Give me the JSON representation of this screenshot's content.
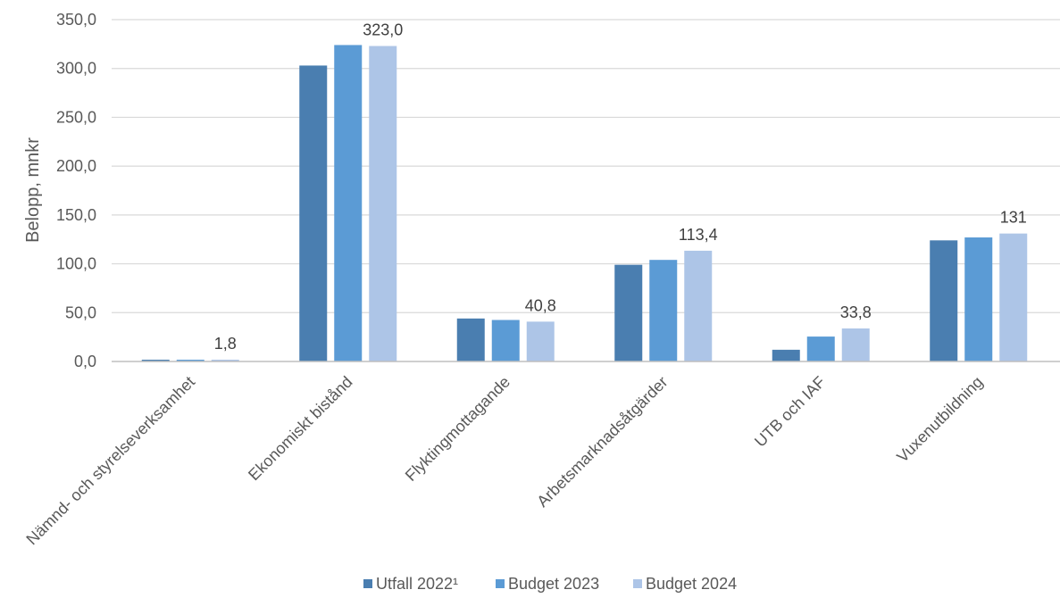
{
  "chart_data": {
    "type": "bar",
    "title": "",
    "xlabel": "",
    "ylabel": "Belopp, mnkr",
    "ylim": [
      0,
      350
    ],
    "yticks": [
      "0,0",
      "50,0",
      "100,0",
      "150,0",
      "200,0",
      "250,0",
      "300,0",
      "350,0"
    ],
    "grid": true,
    "legend_position": "bottom",
    "categories": [
      "Nämnd- och styrelseverksamhet",
      "Ekonomiskt bistånd",
      "Flyktingmottagande",
      "Arbetsmarknadsåtgärder",
      "UTB och IAF",
      "Vuxenutbildning"
    ],
    "series": [
      {
        "name": "Utfall 2022¹",
        "color": "#4a7eb0",
        "values": [
          1.8,
          303.0,
          44.0,
          99.0,
          12.0,
          124.0
        ]
      },
      {
        "name": "Budget 2023",
        "color": "#5b9bd5",
        "values": [
          1.8,
          324.0,
          42.5,
          104.0,
          25.5,
          127.0
        ]
      },
      {
        "name": "Budget 2024",
        "color": "#adc5e7",
        "values": [
          1.8,
          323.0,
          40.8,
          113.4,
          33.8,
          131.0
        ]
      }
    ],
    "data_labels": [
      "1,8",
      "323,0",
      "40,8",
      "113,4",
      "33,8",
      "131"
    ]
  }
}
